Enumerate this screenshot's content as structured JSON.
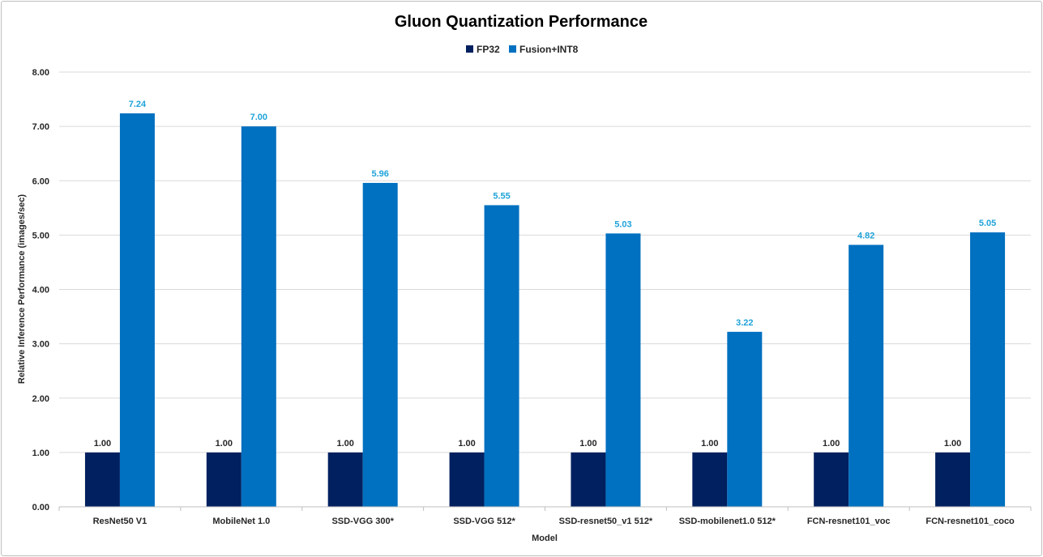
{
  "chart_data": {
    "type": "bar",
    "title": "Gluon Quantization Performance",
    "xlabel": "Model",
    "ylabel": "Relative Inference Performance (images/sec)",
    "ylim": [
      0,
      8
    ],
    "yticks": [
      "0.00",
      "1.00",
      "2.00",
      "3.00",
      "4.00",
      "5.00",
      "6.00",
      "7.00",
      "8.00"
    ],
    "grid": true,
    "legend_position": "top-center",
    "categories": [
      "ResNet50 V1",
      "MobileNet 1.0",
      "SSD-VGG 300*",
      "SSD-VGG 512*",
      "SSD-resnet50_v1 512*",
      "SSD-mobilenet1.0 512*",
      "FCN-resnet101_voc",
      "FCN-resnet101_coco"
    ],
    "series": [
      {
        "name": "FP32",
        "color": "#002060",
        "values": [
          1.0,
          1.0,
          1.0,
          1.0,
          1.0,
          1.0,
          1.0,
          1.0
        ],
        "labels": [
          "1.00",
          "1.00",
          "1.00",
          "1.00",
          "1.00",
          "1.00",
          "1.00",
          "1.00"
        ]
      },
      {
        "name": "Fusion+INT8",
        "color": "#0070c0",
        "values": [
          7.24,
          7.0,
          5.96,
          5.55,
          5.03,
          3.22,
          4.82,
          5.05
        ],
        "labels": [
          "7.24",
          "7.00",
          "5.96",
          "5.55",
          "5.03",
          "3.22",
          "4.82",
          "5.05"
        ]
      }
    ]
  }
}
